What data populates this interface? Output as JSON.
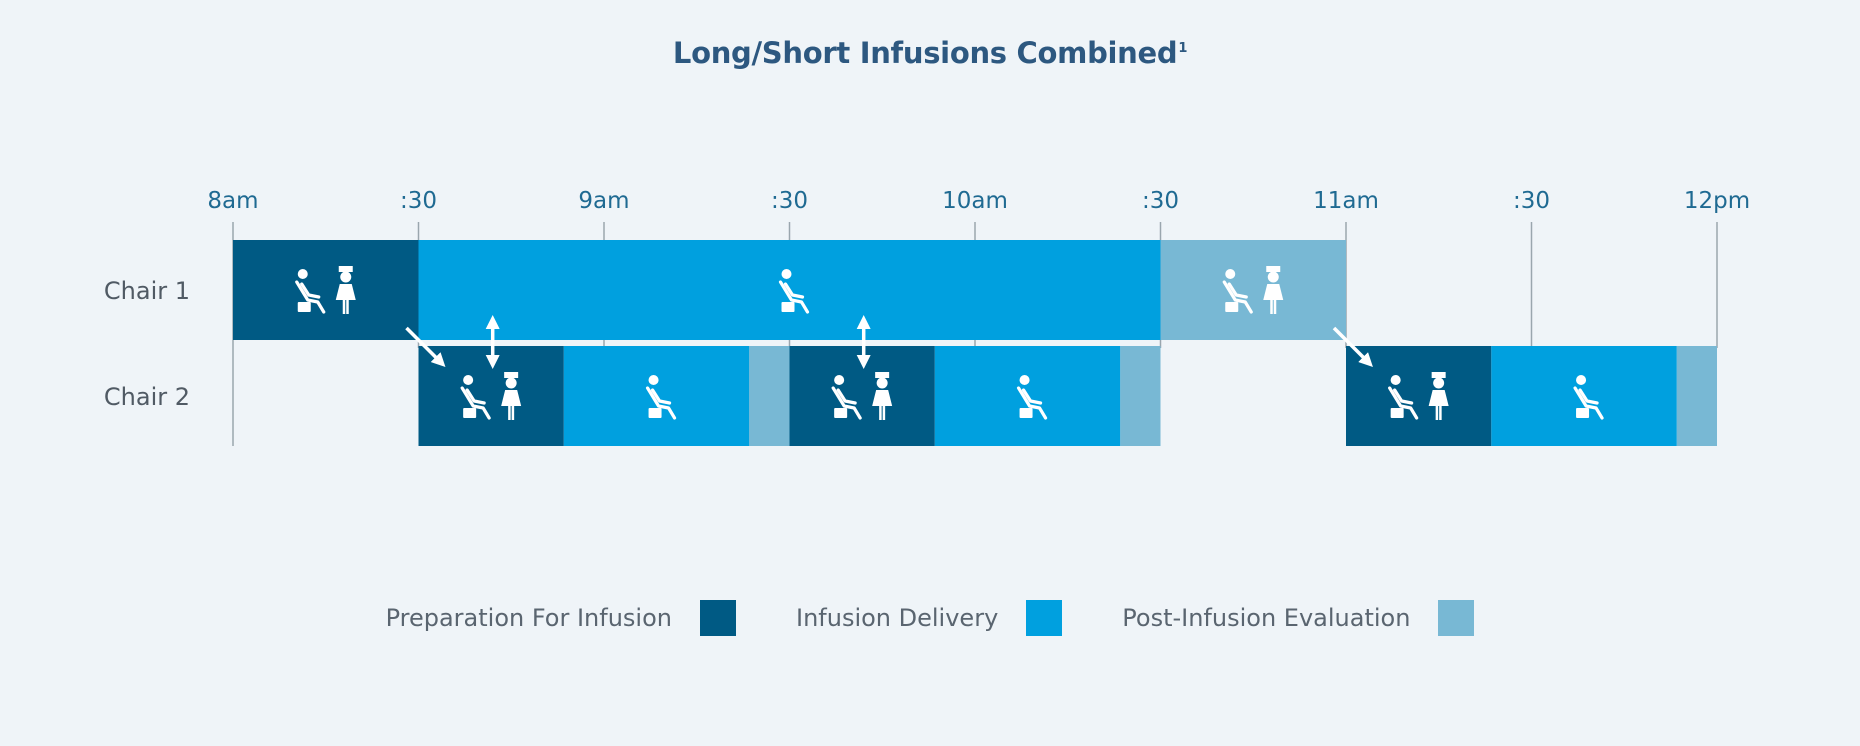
{
  "chart_data": {
    "type": "gantt",
    "title": "Long/Short Infusions Combined",
    "title_superscript": "1",
    "x_unit": "minutes after 8am",
    "x_range": [
      0,
      240
    ],
    "x_ticks": [
      {
        "value": 0,
        "label": "8am"
      },
      {
        "value": 30,
        "label": ":30"
      },
      {
        "value": 60,
        "label": "9am"
      },
      {
        "value": 90,
        "label": ":30"
      },
      {
        "value": 120,
        "label": "10am"
      },
      {
        "value": 150,
        "label": ":30"
      },
      {
        "value": 180,
        "label": "11am"
      },
      {
        "value": 210,
        "label": ":30"
      },
      {
        "value": 240,
        "label": "12pm"
      }
    ],
    "rows": [
      {
        "label": "Chair 1",
        "segments": [
          {
            "phase": "prep",
            "start": 0,
            "end": 30
          },
          {
            "phase": "delivery",
            "start": 30,
            "end": 150
          },
          {
            "phase": "post",
            "start": 150,
            "end": 180
          }
        ]
      },
      {
        "label": "Chair 2",
        "segments": [
          {
            "phase": "prep",
            "start": 30,
            "end": 53.5
          },
          {
            "phase": "delivery",
            "start": 53.5,
            "end": 83.5
          },
          {
            "phase": "post",
            "start": 83.5,
            "end": 90
          },
          {
            "phase": "prep",
            "start": 90,
            "end": 113.5
          },
          {
            "phase": "delivery",
            "start": 113.5,
            "end": 143.5
          },
          {
            "phase": "post",
            "start": 143.5,
            "end": 150
          },
          {
            "phase": "prep",
            "start": 180,
            "end": 203.5
          },
          {
            "phase": "delivery",
            "start": 203.5,
            "end": 233.5
          },
          {
            "phase": "post",
            "start": 233.5,
            "end": 240
          }
        ]
      }
    ],
    "handoff_arrows": [
      30,
      180
    ],
    "double_arrows": [
      42,
      102
    ],
    "legend": [
      {
        "phase": "prep",
        "label": "Preparation For Infusion"
      },
      {
        "phase": "delivery",
        "label": "Infusion Delivery"
      },
      {
        "phase": "post",
        "label": "Post-Infusion Evaluation"
      }
    ],
    "colors": {
      "prep": "#005a84",
      "delivery": "#00a0df",
      "post": "#78b8d4",
      "tick_line": "#9aa6ae",
      "icon": "#ffffff"
    }
  }
}
